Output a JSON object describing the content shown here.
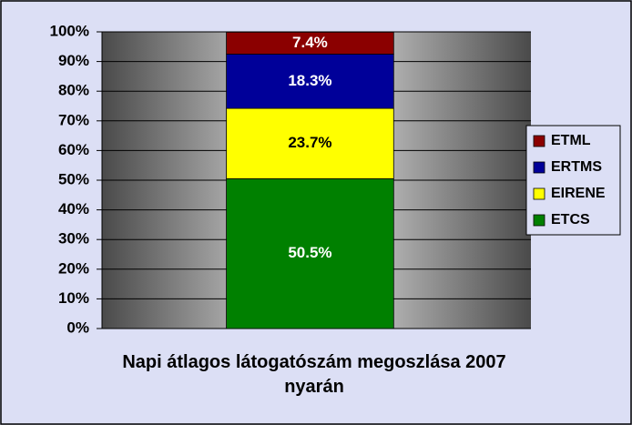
{
  "chart_data": {
    "type": "stacked_bar",
    "categories": [
      "Napi átlagos látogatószám megoszlása 2007 nyarán"
    ],
    "series": [
      {
        "name": "ETCS",
        "color": "#008000",
        "values": [
          50.5
        ],
        "value_labels": [
          "50.5%"
        ]
      },
      {
        "name": "EIRENE",
        "color": "#ffff00",
        "values": [
          23.7
        ],
        "value_labels": [
          "23.7%"
        ]
      },
      {
        "name": "ERTMS",
        "color": "#000099",
        "values": [
          18.3
        ],
        "value_labels": [
          "18.3%"
        ]
      },
      {
        "name": "ETML",
        "color": "#8b0000",
        "values": [
          7.4
        ],
        "value_labels": [
          "7.4%"
        ]
      }
    ],
    "ylim": [
      0,
      100
    ],
    "yticks": [
      {
        "value": 0,
        "label": "0%"
      },
      {
        "value": 10,
        "label": "10%"
      },
      {
        "value": 20,
        "label": "20%"
      },
      {
        "value": 30,
        "label": "30%"
      },
      {
        "value": 40,
        "label": "40%"
      },
      {
        "value": 50,
        "label": "50%"
      },
      {
        "value": 60,
        "label": "60%"
      },
      {
        "value": 70,
        "label": "70%"
      },
      {
        "value": 80,
        "label": "80%"
      },
      {
        "value": 90,
        "label": "90%"
      },
      {
        "value": 100,
        "label": "100%"
      }
    ],
    "grid": true,
    "legend": "right"
  }
}
